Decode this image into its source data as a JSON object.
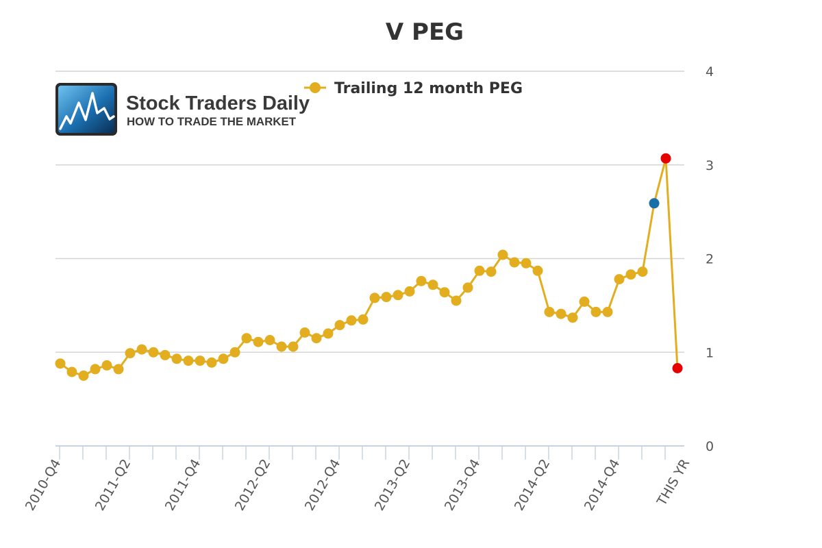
{
  "chart_data": {
    "type": "line",
    "title": "V PEG",
    "xlabel": "",
    "ylabel": "",
    "ylim": [
      0,
      4
    ],
    "yticks": [
      "0",
      "1",
      "2",
      "3",
      "4"
    ],
    "y_axis_side": "right",
    "grid": true,
    "legend_position": "top-center",
    "x_tick_labels": [
      "2010-Q4",
      "2011-Q2",
      "2011-Q4",
      "2012-Q2",
      "2012-Q4",
      "2013-Q2",
      "2013-Q4",
      "2014-Q2",
      "2014-Q4",
      "THIS YR"
    ],
    "series": [
      {
        "name": "Trailing 12 month PEG",
        "color": "#e2ad1e",
        "values": [
          0.88,
          0.79,
          0.75,
          0.82,
          0.86,
          0.82,
          0.99,
          1.03,
          1.0,
          0.97,
          0.93,
          0.91,
          0.91,
          0.89,
          0.93,
          1.0,
          1.15,
          1.11,
          1.13,
          1.06,
          1.06,
          1.21,
          1.15,
          1.2,
          1.29,
          1.34,
          1.35,
          1.58,
          1.59,
          1.61,
          1.65,
          1.76,
          1.72,
          1.64,
          1.55,
          1.69,
          1.87,
          1.86,
          2.04,
          1.96,
          1.95,
          1.87,
          1.43,
          1.41,
          1.37,
          1.54,
          1.43,
          1.43,
          1.78,
          1.83,
          1.86,
          2.59,
          3.07,
          0.83
        ],
        "point_colors": {
          "51": "#1a6fa6",
          "52": "#e60000",
          "53": "#e60000"
        }
      }
    ]
  },
  "logo": {
    "name": "Stock Traders Daily",
    "tagline": "HOW TO TRADE THE MARKET"
  }
}
